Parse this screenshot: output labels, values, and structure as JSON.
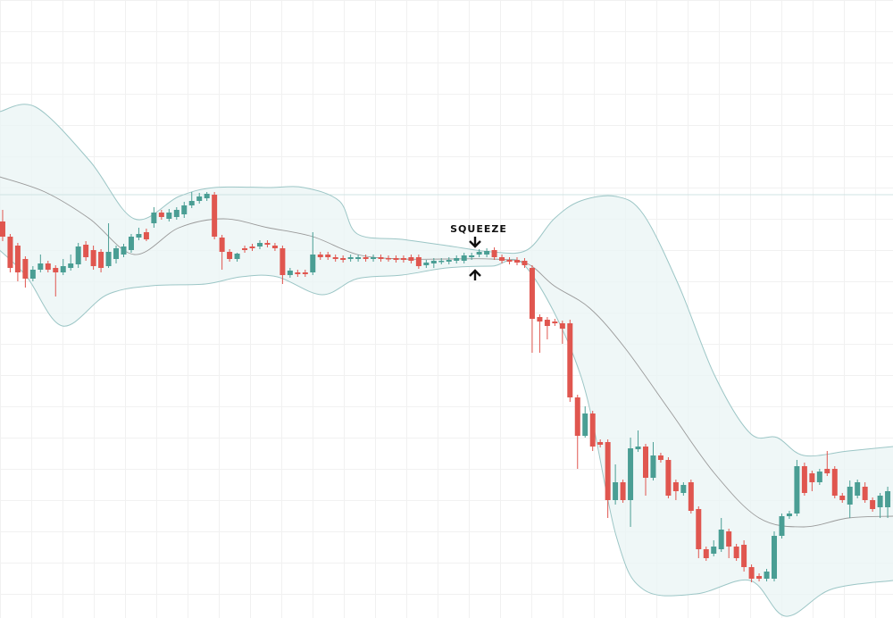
{
  "chart_data": {
    "type": "candlestick",
    "annotation": "SQUEEZE",
    "xlim": [
      -0.35,
      117.7
    ],
    "ylim": [
      0,
      692
    ],
    "up_color": "#4a9e94",
    "down_color": "#e0564f",
    "band_fill": "#e9f4f4",
    "band_color": "#9cc6c6",
    "middle_color": "#9a9a9a",
    "hline": 474,
    "hline_color": "#cfe3e3",
    "open": [
      444,
      427,
      417,
      402,
      380,
      390,
      397,
      392,
      387,
      392,
      396,
      418,
      412,
      410,
      394,
      402,
      407,
      412,
      426,
      432,
      442,
      454,
      447,
      449,
      452,
      462,
      467,
      470,
      474,
      426,
      410,
      402,
      414,
      416,
      416,
      420,
      417,
      414,
      384,
      387,
      387,
      387,
      407,
      407,
      404,
      403,
      402,
      402,
      404,
      402,
      404,
      403,
      403,
      403,
      404,
      404,
      395,
      397,
      399,
      399,
      400,
      400,
      404,
      407,
      407,
      412,
      404,
      401,
      401,
      400,
      392,
      337,
      334,
      332,
      330,
      330,
      247,
      204,
      229,
      197,
      197,
      132,
      152,
      132,
      189,
      192,
      157,
      182,
      177,
      152,
      140,
      152,
      122,
      77,
      72,
      77,
      97,
      80,
      82,
      57,
      47,
      44,
      44,
      92,
      114,
      117,
      170,
      162,
      152,
      167,
      167,
      137,
      127,
      137,
      147,
      132,
      124,
      124
    ],
    "high": [
      457,
      430,
      420,
      405,
      394,
      407,
      400,
      395,
      402,
      407,
      420,
      422,
      417,
      413,
      442,
      417,
      419,
      430,
      437,
      436,
      460,
      457,
      458,
      460,
      466,
      477,
      476,
      477,
      477,
      429,
      413,
      409,
      417,
      419,
      423,
      423,
      420,
      417,
      392,
      390,
      390,
      432,
      410,
      410,
      407,
      406,
      407,
      407,
      407,
      407,
      407,
      406,
      406,
      406,
      407,
      407,
      401,
      403,
      403,
      404,
      406,
      409,
      409,
      413,
      414,
      415,
      407,
      404,
      404,
      403,
      395,
      340,
      337,
      335,
      333,
      334,
      250,
      237,
      232,
      200,
      200,
      172,
      155,
      202,
      210,
      195,
      197,
      185,
      180,
      155,
      152,
      155,
      125,
      80,
      87,
      112,
      100,
      83,
      87,
      60,
      50,
      55,
      97,
      117,
      120,
      177,
      174,
      165,
      167,
      187,
      170,
      140,
      154,
      155,
      152,
      135,
      140,
      147
    ],
    "low": [
      422,
      387,
      377,
      370,
      377,
      387,
      387,
      360,
      384,
      389,
      392,
      400,
      390,
      387,
      392,
      397,
      404,
      409,
      423,
      422,
      437,
      446,
      444,
      446,
      448,
      459,
      464,
      467,
      424,
      390,
      399,
      399,
      409,
      411,
      413,
      415,
      411,
      374,
      381,
      382,
      382,
      384,
      401,
      401,
      399,
      398,
      399,
      399,
      399,
      399,
      399,
      399,
      398,
      398,
      397,
      391,
      392,
      392,
      396,
      396,
      397,
      397,
      401,
      404,
      404,
      401,
      397,
      396,
      395,
      392,
      297,
      297,
      312,
      327,
      307,
      242,
      167,
      202,
      187,
      191,
      112,
      127,
      129,
      102,
      186,
      137,
      154,
      174,
      134,
      132,
      137,
      117,
      67,
      64,
      69,
      74,
      67,
      64,
      52,
      40,
      41,
      41,
      41,
      89,
      111,
      114,
      137,
      142,
      149,
      159,
      134,
      129,
      112,
      134,
      129,
      119,
      112,
      112
    ],
    "close": [
      427,
      392,
      387,
      380,
      390,
      397,
      390,
      387,
      394,
      397,
      416,
      404,
      394,
      392,
      410,
      414,
      416,
      427,
      430,
      424,
      454,
      449,
      454,
      457,
      462,
      467,
      472,
      475,
      427,
      410,
      402,
      408,
      412,
      414,
      420,
      418,
      414,
      384,
      389,
      385,
      385,
      407,
      404,
      404,
      402,
      401,
      404,
      404,
      402,
      404,
      402,
      402,
      401,
      401,
      400,
      394,
      398,
      400,
      400,
      401,
      403,
      406,
      406,
      410,
      411,
      404,
      400,
      399,
      398,
      395,
      335,
      332,
      327,
      330,
      324,
      247,
      204,
      229,
      192,
      194,
      132,
      152,
      132,
      190,
      192,
      157,
      182,
      177,
      137,
      142,
      149,
      120,
      77,
      67,
      80,
      99,
      80,
      67,
      57,
      44,
      44,
      52,
      92,
      114,
      117,
      170,
      140,
      152,
      164,
      162,
      137,
      132,
      147,
      152,
      132,
      122,
      137,
      142
    ],
    "bands": {
      "upper": {
        "x": [
          -0.4,
          4.4,
          11.5,
          17.4,
          23.3,
          28,
          35.1,
          39.8,
          44.5,
          46.9,
          52.8,
          58.7,
          64.6,
          69.3,
          72.9,
          76.4,
          81.1,
          84.7,
          89.4,
          94.1,
          98.8,
          102.4,
          105.9,
          111.8,
          117.7
        ],
        "values": [
          567,
          572,
          512,
          447,
          472,
          482,
          482,
          482,
          467,
          430,
          424,
          417,
          410,
          412,
          447,
          467,
          472,
          452,
          372,
          272,
          207,
          202,
          182,
          187,
          192
        ]
      },
      "middle": {
        "x": [
          -0.4,
          5.6,
          11.5,
          17.4,
          23.3,
          29.2,
          35.1,
          41,
          46.9,
          52.8,
          58.7,
          64.6,
          69.3,
          72.9,
          77.6,
          82.3,
          88.2,
          94.1,
          100,
          105.9,
          111.8,
          117.7
        ],
        "values": [
          494,
          477,
          447,
          407,
          437,
          447,
          437,
          427,
          407,
          402,
          402,
          402,
          397,
          372,
          347,
          302,
          232,
          162,
          112,
          102,
          112,
          114
        ]
      },
      "lower": {
        "x": [
          -0.4,
          3.2,
          7.9,
          13.8,
          19.7,
          26.8,
          31.5,
          36.3,
          42.2,
          46.9,
          52.8,
          58.7,
          64.6,
          69.3,
          76.4,
          81.1,
          84.7,
          91.7,
          98.8,
          103.5,
          109.5,
          117.7
        ],
        "values": [
          412,
          382,
          327,
          362,
          372,
          374,
          382,
          382,
          362,
          380,
          384,
          392,
          394,
          392,
          272,
          92,
          32,
          27,
          42,
          2,
          32,
          42
        ]
      }
    }
  }
}
